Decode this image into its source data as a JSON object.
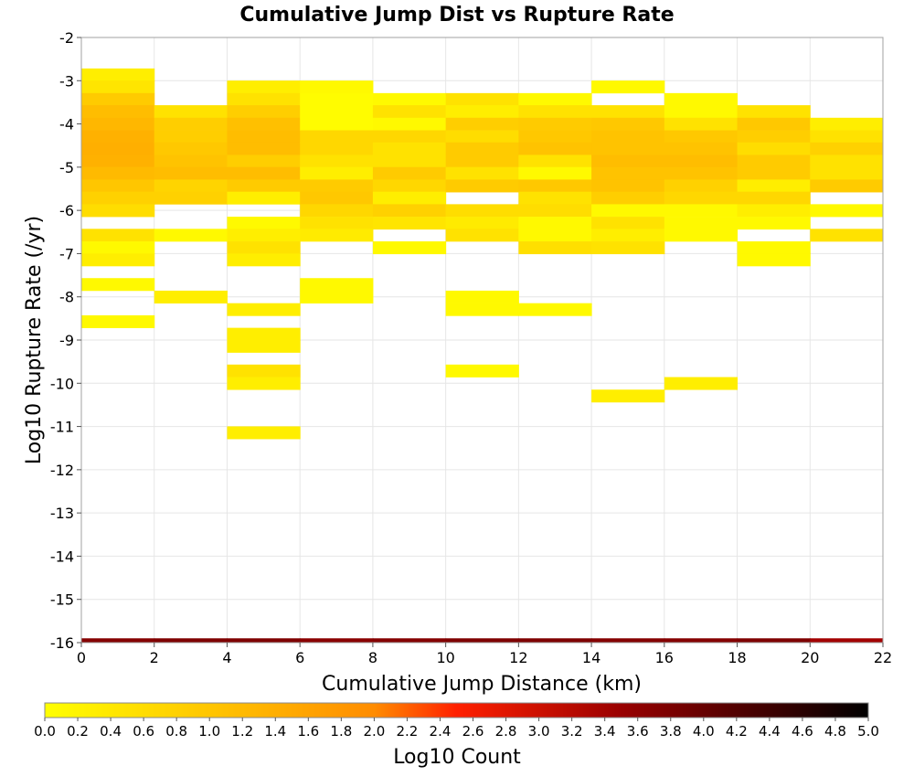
{
  "chart_data": {
    "type": "heatmap",
    "title": "Cumulative Jump Dist vs Rupture Rate",
    "xlabel": "Cumulative Jump Distance (km)",
    "ylabel": "Log10 Rupture Rate (/yr)",
    "xlim": [
      0,
      22
    ],
    "ylim": [
      -16,
      -2
    ],
    "xticks": [
      "0",
      "2",
      "4",
      "6",
      "8",
      "10",
      "12",
      "14",
      "16",
      "18",
      "20",
      "22"
    ],
    "yticks": [
      "-2",
      "-3",
      "-4",
      "-5",
      "-6",
      "-7",
      "-8",
      "-9",
      "-10",
      "-11",
      "-12",
      "-13",
      "-14",
      "-15",
      "-16"
    ],
    "x_bin_width": 2,
    "y_bin_height": 0.286,
    "grid": true,
    "colorbar": {
      "label": "Log10 Count",
      "range": [
        0,
        5
      ],
      "ticks": [
        "0.0",
        "0.2",
        "0.4",
        "0.6",
        "0.8",
        "1.0",
        "1.2",
        "1.4",
        "1.6",
        "1.8",
        "2.0",
        "2.2",
        "2.4",
        "2.6",
        "2.8",
        "3.0",
        "3.2",
        "3.4",
        "3.6",
        "3.8",
        "4.0",
        "4.2",
        "4.4",
        "4.6",
        "4.8",
        "5.0"
      ],
      "colors": [
        "#ffff00",
        "#ff8c00",
        "#ff0000",
        "#990000",
        "#000000"
      ]
    },
    "cells": [
      [
        1,
        -2.86,
        0.3
      ],
      [
        1,
        -3.14,
        0.45
      ],
      [
        1,
        -3.43,
        0.9
      ],
      [
        1,
        -3.71,
        1.15
      ],
      [
        1,
        -4.0,
        1.25
      ],
      [
        1,
        -4.29,
        1.35
      ],
      [
        1,
        -4.57,
        1.4
      ],
      [
        1,
        -4.86,
        1.35
      ],
      [
        1,
        -5.14,
        1.2
      ],
      [
        1,
        -5.43,
        1.0
      ],
      [
        1,
        -5.71,
        0.8
      ],
      [
        1,
        -6.0,
        0.6
      ],
      [
        1,
        -6.57,
        0.5
      ],
      [
        1,
        -6.86,
        0.1
      ],
      [
        1,
        -7.14,
        0.3
      ],
      [
        1,
        -7.71,
        0.1
      ],
      [
        1,
        -8.57,
        0.1
      ],
      [
        3,
        -3.71,
        0.5
      ],
      [
        3,
        -4.0,
        0.85
      ],
      [
        3,
        -4.29,
        0.85
      ],
      [
        3,
        -4.57,
        0.95
      ],
      [
        3,
        -4.86,
        1.05
      ],
      [
        3,
        -5.14,
        1.15
      ],
      [
        3,
        -5.43,
        0.75
      ],
      [
        3,
        -5.71,
        0.8
      ],
      [
        3,
        -6.57,
        0.1
      ],
      [
        3,
        -8.0,
        0.3
      ],
      [
        5,
        -3.14,
        0.3
      ],
      [
        5,
        -3.43,
        0.5
      ],
      [
        5,
        -3.71,
        0.85
      ],
      [
        5,
        -4.0,
        1.1
      ],
      [
        5,
        -4.29,
        1.15
      ],
      [
        5,
        -4.57,
        1.15
      ],
      [
        5,
        -4.86,
        0.85
      ],
      [
        5,
        -5.14,
        1.15
      ],
      [
        5,
        -5.43,
        0.9
      ],
      [
        5,
        -5.71,
        0.3
      ],
      [
        5,
        -6.29,
        0.1
      ],
      [
        5,
        -6.57,
        0.3
      ],
      [
        5,
        -6.86,
        0.5
      ],
      [
        5,
        -7.14,
        0.3
      ],
      [
        5,
        -8.29,
        0.3
      ],
      [
        5,
        -8.86,
        0.3
      ],
      [
        5,
        -9.14,
        0.3
      ],
      [
        5,
        -9.71,
        0.5
      ],
      [
        5,
        -10.0,
        0.3
      ],
      [
        5,
        -11.14,
        0.3
      ],
      [
        7,
        -3.14,
        0.1
      ],
      [
        7,
        -3.43,
        0.05
      ],
      [
        7,
        -3.71,
        0.05
      ],
      [
        7,
        -4.0,
        0.05
      ],
      [
        7,
        -4.29,
        0.7
      ],
      [
        7,
        -4.57,
        0.7
      ],
      [
        7,
        -4.86,
        0.5
      ],
      [
        7,
        -5.14,
        0.3
      ],
      [
        7,
        -5.43,
        0.9
      ],
      [
        7,
        -5.71,
        0.95
      ],
      [
        7,
        -6.0,
        0.7
      ],
      [
        7,
        -6.29,
        0.5
      ],
      [
        7,
        -6.57,
        0.35
      ],
      [
        7,
        -7.71,
        0.1
      ],
      [
        7,
        -8.0,
        0.1
      ],
      [
        9,
        -3.43,
        0.1
      ],
      [
        9,
        -3.71,
        0.5
      ],
      [
        9,
        -4.0,
        0.1
      ],
      [
        9,
        -4.29,
        0.7
      ],
      [
        9,
        -4.57,
        0.5
      ],
      [
        9,
        -4.86,
        0.5
      ],
      [
        9,
        -5.14,
        0.9
      ],
      [
        9,
        -5.43,
        0.7
      ],
      [
        9,
        -5.71,
        0.3
      ],
      [
        9,
        -6.0,
        0.8
      ],
      [
        9,
        -6.29,
        0.45
      ],
      [
        9,
        -6.86,
        0.1
      ],
      [
        11,
        -3.43,
        0.5
      ],
      [
        11,
        -3.71,
        0.3
      ],
      [
        11,
        -4.0,
        0.85
      ],
      [
        11,
        -4.29,
        0.6
      ],
      [
        11,
        -4.57,
        0.9
      ],
      [
        11,
        -4.86,
        0.9
      ],
      [
        11,
        -5.14,
        0.5
      ],
      [
        11,
        -5.43,
        0.9
      ],
      [
        11,
        -6.0,
        0.6
      ],
      [
        11,
        -6.29,
        0.35
      ],
      [
        11,
        -6.57,
        0.5
      ],
      [
        11,
        -8.0,
        0.1
      ],
      [
        11,
        -8.29,
        0.1
      ],
      [
        11,
        -9.71,
        0.1
      ],
      [
        13,
        -3.43,
        0.1
      ],
      [
        13,
        -3.71,
        0.5
      ],
      [
        13,
        -4.0,
        0.9
      ],
      [
        13,
        -4.29,
        0.95
      ],
      [
        13,
        -4.57,
        1.05
      ],
      [
        13,
        -4.86,
        0.5
      ],
      [
        13,
        -5.14,
        0.1
      ],
      [
        13,
        -5.43,
        0.95
      ],
      [
        13,
        -5.71,
        0.5
      ],
      [
        13,
        -6.0,
        0.6
      ],
      [
        13,
        -6.29,
        0.1
      ],
      [
        13,
        -6.57,
        0.1
      ],
      [
        13,
        -6.86,
        0.55
      ],
      [
        13,
        -8.29,
        0.1
      ],
      [
        15,
        -3.14,
        0.1
      ],
      [
        15,
        -3.71,
        0.5
      ],
      [
        15,
        -4.0,
        0.95
      ],
      [
        15,
        -4.29,
        1.05
      ],
      [
        15,
        -4.57,
        1.05
      ],
      [
        15,
        -4.86,
        1.15
      ],
      [
        15,
        -5.14,
        1.05
      ],
      [
        15,
        -5.43,
        1.05
      ],
      [
        15,
        -5.71,
        0.85
      ],
      [
        15,
        -6.0,
        0.1
      ],
      [
        15,
        -6.29,
        0.5
      ],
      [
        15,
        -6.57,
        0.3
      ],
      [
        15,
        -6.86,
        0.5
      ],
      [
        15,
        -10.29,
        0.3
      ],
      [
        17,
        -3.43,
        0.1
      ],
      [
        17,
        -3.71,
        0.1
      ],
      [
        17,
        -4.0,
        0.5
      ],
      [
        17,
        -4.29,
        0.95
      ],
      [
        17,
        -4.57,
        1.05
      ],
      [
        17,
        -4.86,
        1.15
      ],
      [
        17,
        -5.14,
        1.05
      ],
      [
        17,
        -5.43,
        0.8
      ],
      [
        17,
        -5.71,
        0.7
      ],
      [
        17,
        -6.0,
        0.1
      ],
      [
        17,
        -6.29,
        0.1
      ],
      [
        17,
        -6.57,
        0.1
      ],
      [
        17,
        -10.0,
        0.3
      ],
      [
        19,
        -3.71,
        0.5
      ],
      [
        19,
        -4.0,
        0.95
      ],
      [
        19,
        -4.29,
        0.85
      ],
      [
        19,
        -4.57,
        0.6
      ],
      [
        19,
        -4.86,
        0.9
      ],
      [
        19,
        -5.14,
        0.9
      ],
      [
        19,
        -5.43,
        0.3
      ],
      [
        19,
        -5.71,
        0.7
      ],
      [
        19,
        -6.0,
        0.3
      ],
      [
        19,
        -6.29,
        0.1
      ],
      [
        19,
        -6.86,
        0.1
      ],
      [
        19,
        -7.14,
        0.1
      ],
      [
        21,
        -4.0,
        0.3
      ],
      [
        21,
        -4.29,
        0.5
      ],
      [
        21,
        -4.57,
        0.8
      ],
      [
        21,
        -4.86,
        0.5
      ],
      [
        21,
        -5.14,
        0.5
      ],
      [
        21,
        -5.43,
        0.9
      ],
      [
        21,
        -6.0,
        0.1
      ],
      [
        21,
        -6.57,
        0.5
      ]
    ],
    "bottom_row": {
      "y": -16,
      "values": [
        [
          1,
          3.7
        ],
        [
          3,
          3.75
        ],
        [
          5,
          3.75
        ],
        [
          7,
          3.65
        ],
        [
          9,
          3.7
        ],
        [
          11,
          3.75
        ],
        [
          13,
          3.75
        ],
        [
          15,
          3.7
        ],
        [
          17,
          3.7
        ],
        [
          19,
          3.75
        ],
        [
          21,
          3.4
        ]
      ]
    }
  }
}
